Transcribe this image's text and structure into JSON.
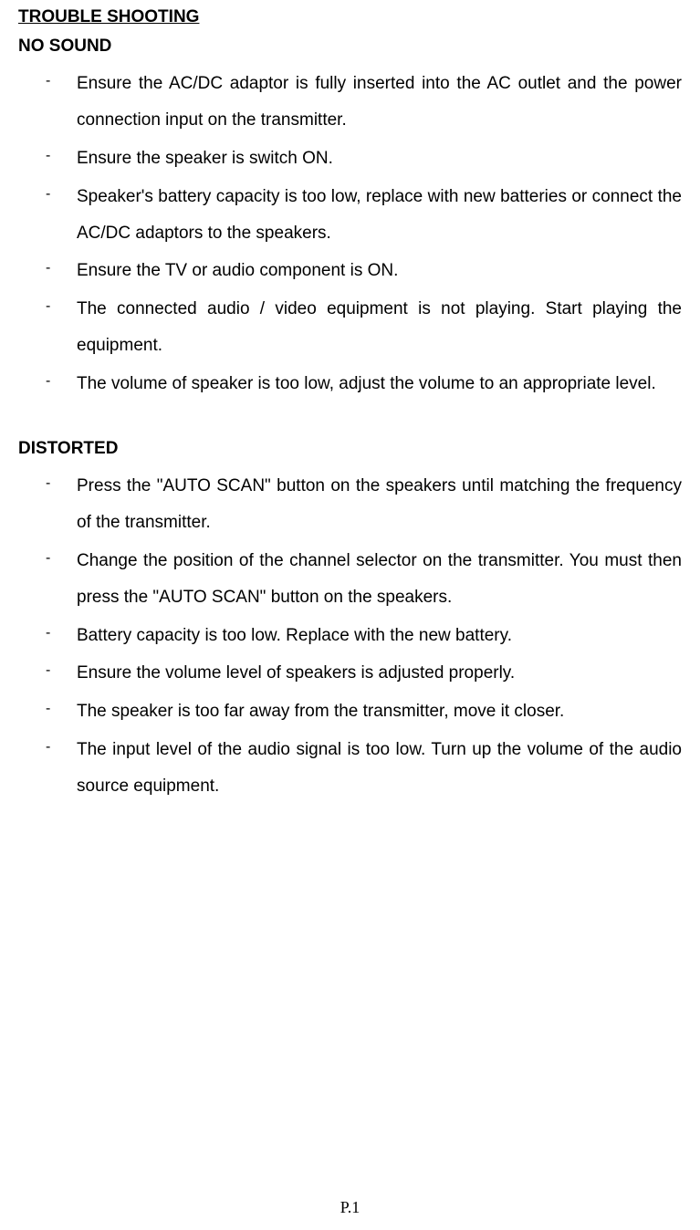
{
  "title": "TROUBLE SHOOTING",
  "sections": [
    {
      "heading": "NO SOUND",
      "items": [
        "Ensure the AC/DC adaptor is fully inserted into the AC outlet and the power connection input on the transmitter.",
        "Ensure the speaker is switch ON.",
        "Speaker's battery capacity is too low, replace with new batteries or connect the AC/DC adaptors to the speakers.",
        "Ensure the TV or audio component is ON.",
        "The connected audio / video equipment is not playing. Start playing the equipment.",
        "The volume of speaker is too low, adjust the volume to an appropriate level."
      ]
    },
    {
      "heading": "DISTORTED",
      "items": [
        "Press the \"AUTO SCAN\" button on the speakers until matching the frequency of the transmitter.",
        "Change the position of the channel selector on the transmitter.   You must then press the \"AUTO SCAN\" button on the speakers.",
        "Battery capacity is too low.   Replace with the new battery.",
        "Ensure the volume level of speakers is adjusted properly.",
        "The speaker is too far away from the transmitter, move it closer.",
        "The input level of the audio signal is too low.   Turn up the volume of the audio source equipment."
      ]
    }
  ],
  "page_number": "P.1",
  "colors": {
    "text": "#000000",
    "background": "#ffffff"
  },
  "typography": {
    "body_font": "Arial",
    "body_size_pt": 14,
    "heading_weight": "bold",
    "page_number_font": "Times New Roman"
  }
}
